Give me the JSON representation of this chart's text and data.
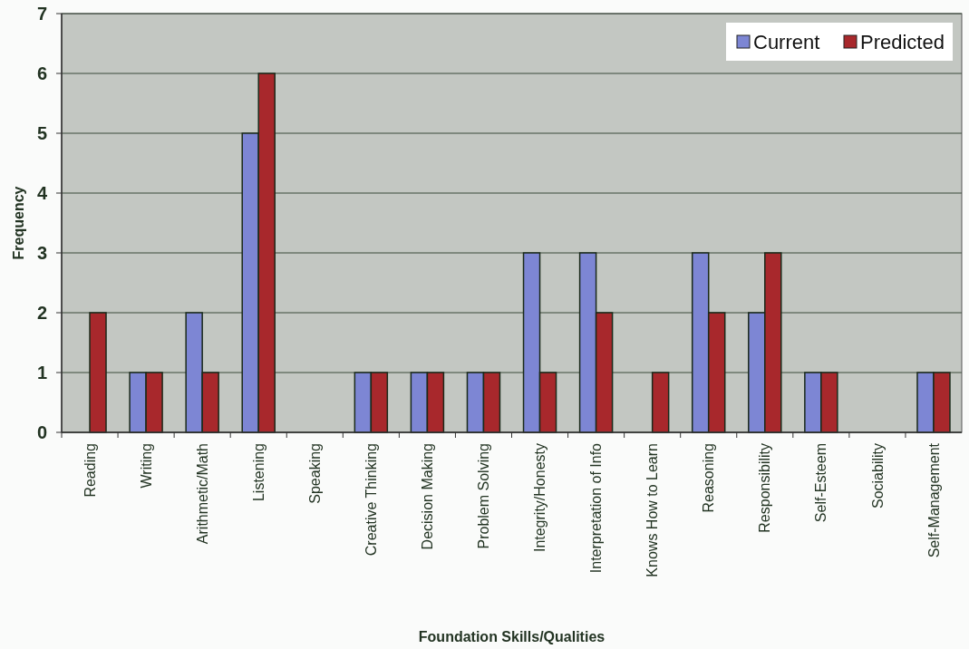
{
  "chart_data": {
    "type": "bar",
    "xlabel": "Foundation Skills/Qualities",
    "ylabel": "Frequency",
    "categories": [
      "Reading",
      "Writing",
      "Arithmetic/Math",
      "Listening",
      "Speaking",
      "Creative Thinking",
      "Decision Making",
      "Problem Solving",
      "Integrity/Honesty",
      "Interpretation of Info",
      "Knows How to Learn",
      "Reasoning",
      "Responsibility",
      "Self-Esteem",
      "Sociability",
      "Self-Management"
    ],
    "series": [
      {
        "name": "Current",
        "color": "#7d86d4",
        "values": [
          0,
          1,
          2,
          5,
          0,
          1,
          1,
          1,
          3,
          3,
          0,
          3,
          2,
          1,
          0,
          1
        ]
      },
      {
        "name": "Predicted",
        "color": "#a8282c",
        "values": [
          2,
          1,
          1,
          6,
          0,
          1,
          1,
          1,
          1,
          2,
          1,
          2,
          3,
          1,
          0,
          1
        ]
      }
    ],
    "ylim": [
      0,
      7
    ],
    "yticks": [
      0,
      1,
      2,
      3,
      4,
      5,
      6,
      7
    ],
    "grid": "y",
    "legend": "top right"
  }
}
